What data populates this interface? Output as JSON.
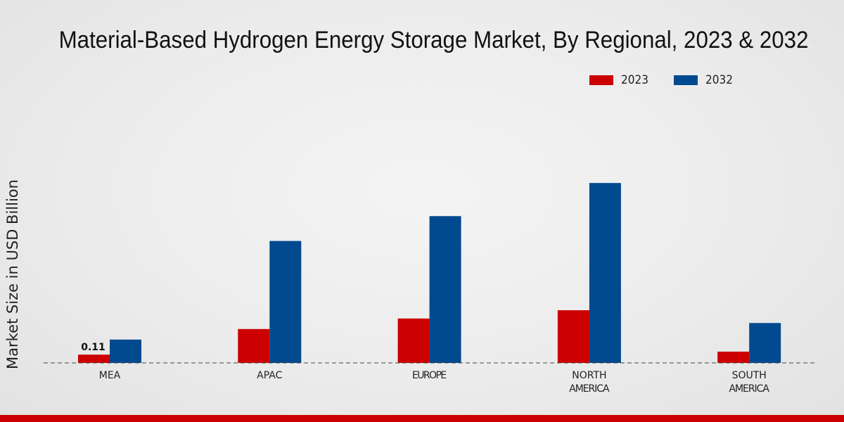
{
  "chart_data": {
    "type": "bar",
    "title": "Material-Based Hydrogen Energy Storage Market, By Regional, 2023 & 2032",
    "xlabel": "",
    "ylabel": "Market Size in USD Billion",
    "categories": [
      "MEA",
      "APAC",
      "EUROPE",
      "NORTH AMERICA",
      "SOUTH AMERICA"
    ],
    "category_lines": [
      [
        "MEA"
      ],
      [
        "APAC"
      ],
      [
        "EUROPE"
      ],
      [
        "NORTH",
        "AMERICA"
      ],
      [
        "SOUTH",
        "AMERICA"
      ]
    ],
    "series": [
      {
        "name": "2023",
        "color": "#cc0000",
        "values": [
          0.11,
          0.45,
          0.59,
          0.7,
          0.15
        ]
      },
      {
        "name": "2032",
        "color": "#024a8f",
        "values": [
          0.31,
          1.62,
          1.95,
          2.39,
          0.53
        ]
      }
    ],
    "data_labels": [
      {
        "series": 0,
        "category": 0,
        "text": "0.11"
      }
    ],
    "ylim": [
      0,
      2.7
    ],
    "grid": false,
    "legend_position": "top-right"
  }
}
